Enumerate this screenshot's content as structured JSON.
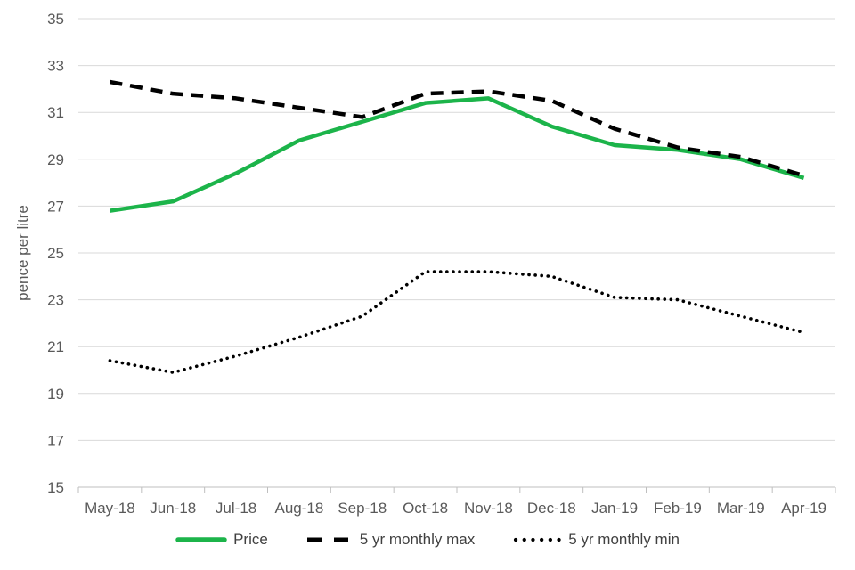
{
  "chart_data": {
    "type": "line",
    "title": "",
    "xlabel": "",
    "ylabel": "pence per litre",
    "ylim": [
      15,
      35
    ],
    "ytick_step": 2,
    "grid": "horizontal",
    "legend_position": "bottom",
    "categories": [
      "May-18",
      "Jun-18",
      "Jul-18",
      "Aug-18",
      "Sep-18",
      "Oct-18",
      "Nov-18",
      "Dec-18",
      "Jan-19",
      "Feb-19",
      "Mar-19",
      "Apr-19"
    ],
    "series": [
      {
        "name": "Price",
        "style": "solid",
        "color": "#1cb44a",
        "values": [
          26.8,
          27.2,
          28.4,
          29.8,
          30.6,
          31.4,
          31.6,
          30.4,
          29.6,
          29.4,
          29.0,
          28.2
        ]
      },
      {
        "name": "5 yr monthly max",
        "style": "dashed",
        "color": "#000000",
        "values": [
          32.3,
          31.8,
          31.6,
          31.2,
          30.8,
          31.8,
          31.9,
          31.5,
          30.3,
          29.5,
          29.1,
          28.3
        ]
      },
      {
        "name": "5 yr monthly min",
        "style": "dotted",
        "color": "#000000",
        "values": [
          20.4,
          19.9,
          20.6,
          21.4,
          22.3,
          24.2,
          24.2,
          24.0,
          23.1,
          23.0,
          22.3,
          21.6
        ]
      }
    ]
  },
  "colors": {
    "gridline": "#d9d9d9",
    "axis_line": "#bfbfbf",
    "tick_label": "#595959",
    "legend_text": "#404040"
  }
}
